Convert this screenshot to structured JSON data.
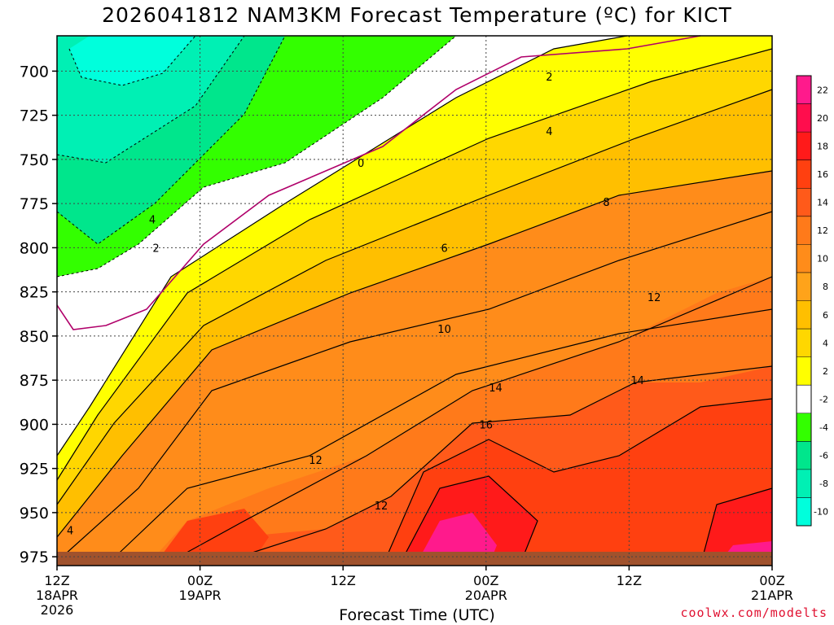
{
  "title": "2026041812 NAM3KM Forecast Temperature (ºC) for KICT",
  "credit": "coolwx.com/modelts",
  "chart_data": {
    "type": "contour",
    "title": "2026041812 NAM3KM Forecast Temperature (ºC) for KICT",
    "xlabel": "Forecast Time (UTC)",
    "ylabel": "",
    "x_range_hours": [
      0,
      60
    ],
    "y_range_hpa": [
      680,
      980
    ],
    "y_ticks": [
      700,
      725,
      750,
      775,
      800,
      825,
      850,
      875,
      900,
      925,
      950,
      975
    ],
    "x_ticks": [
      {
        "hour": 0,
        "lines": [
          "12Z",
          "18APR",
          "2026"
        ]
      },
      {
        "hour": 12,
        "lines": [
          "00Z",
          "19APR"
        ]
      },
      {
        "hour": 24,
        "lines": [
          "12Z"
        ]
      },
      {
        "hour": 36,
        "lines": [
          "00Z",
          "20APR"
        ]
      },
      {
        "hour": 48,
        "lines": [
          "12Z"
        ]
      },
      {
        "hour": 60,
        "lines": [
          "00Z",
          "21APR"
        ]
      }
    ],
    "grid": true,
    "colorbar": {
      "position": "right",
      "labels": [
        22,
        20,
        18,
        16,
        14,
        12,
        10,
        8,
        6,
        4,
        2,
        -2,
        -4,
        -6,
        -8,
        -10
      ],
      "colors": [
        "#ff1a8c",
        "#ff0d4d",
        "#ff1a1a",
        "#ff4010",
        "#ff5a1a",
        "#ff7a1a",
        "#ff8c1a",
        "#ffa31a",
        "#ffbf00",
        "#ffd700",
        "#ffff00",
        "#ffffff",
        "#33ff00",
        "#00e68c",
        "#00f0b4",
        "#00ffdc"
      ]
    },
    "contour_labels": [
      {
        "value": "4",
        "hour": 8,
        "hpa": 784
      },
      {
        "value": "2",
        "hour": 8.3,
        "hpa": 800
      },
      {
        "value": "0",
        "hour": 25.5,
        "hpa": 752
      },
      {
        "value": "2",
        "hour": 41.3,
        "hpa": 703
      },
      {
        "value": "4",
        "hour": 41.3,
        "hpa": 734
      },
      {
        "value": "8",
        "hour": 46.1,
        "hpa": 774
      },
      {
        "value": "6",
        "hour": 32.5,
        "hpa": 800
      },
      {
        "value": "10",
        "hour": 32.5,
        "hpa": 846
      },
      {
        "value": "12",
        "hour": 50.1,
        "hpa": 828
      },
      {
        "value": "14",
        "hour": 36.8,
        "hpa": 879
      },
      {
        "value": "14",
        "hour": 48.7,
        "hpa": 875
      },
      {
        "value": "16",
        "hour": 36.0,
        "hpa": 900
      },
      {
        "value": "12",
        "hour": 21.7,
        "hpa": 920
      },
      {
        "value": "12",
        "hour": 27.2,
        "hpa": 946
      },
      {
        "value": "4",
        "hour": 1.1,
        "hpa": 960
      }
    ]
  }
}
